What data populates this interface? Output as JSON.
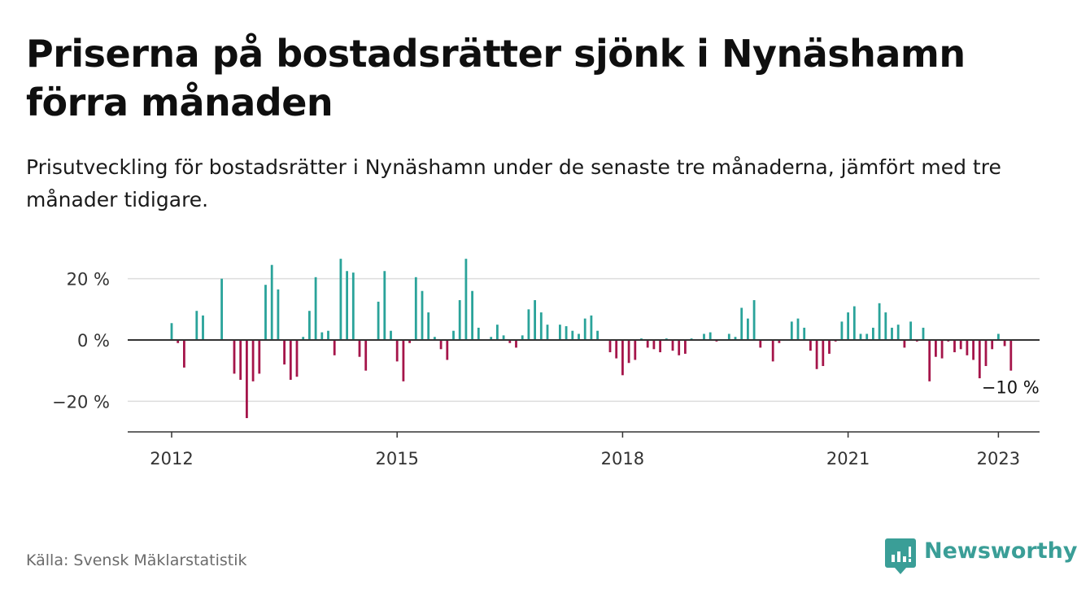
{
  "title": "Priserna på bostadsrätter sjönk i Nynäshamn förra månaden",
  "subtitle": "Prisutveckling för bostadsrätter i Nynäshamn under de senaste tre månaderna, jämfört med tre månader tidigare.",
  "source": "Källa: Svensk Mäklarstatistik",
  "brand": "Newsworthy",
  "colors": {
    "positive": "#2aa39a",
    "negative": "#a5154a",
    "zero_line": "#333333",
    "grid": "#dddddd",
    "brand": "#3a9e97"
  },
  "chart_data": {
    "type": "bar",
    "title": "",
    "xlabel": "",
    "ylabel": "",
    "ylim": [
      -30,
      30
    ],
    "yticks": [
      20,
      0,
      -20
    ],
    "ytick_labels": [
      "20 %",
      "0 %",
      "−20 %"
    ],
    "xticks": [
      2012,
      2015,
      2018,
      2021,
      2023
    ],
    "xtick_labels": [
      "2012",
      "2015",
      "2018",
      "2021",
      "2023"
    ],
    "grid": true,
    "legend": "none",
    "end_label": "−10 %",
    "series": [
      {
        "values": [
          5.5,
          -1,
          -9,
          null,
          9.5,
          8,
          null,
          null,
          20,
          null,
          -11,
          -13,
          -25.5,
          -13.5,
          -11,
          18,
          24.5,
          16.5,
          -8,
          -13,
          -12,
          1,
          9.5,
          20.5,
          2.5,
          3,
          -5,
          26.5,
          22.5,
          22,
          -5.5,
          -10,
          null,
          12.5,
          22.5,
          3,
          -7,
          -13.5,
          -1,
          20.5,
          16,
          9,
          1,
          -3,
          -6.5,
          3,
          13,
          26.5,
          16,
          4,
          null,
          1,
          5,
          1.5,
          -1,
          -2.5,
          1.5,
          10,
          13,
          9,
          5,
          null,
          5,
          4.5,
          3,
          2,
          7,
          8,
          3,
          null,
          -4,
          -6,
          -11.5,
          -7.5,
          -6.5,
          0.5,
          -2.5,
          -3,
          -4,
          0.5,
          -3.5,
          -5,
          -4.5,
          0.5,
          null,
          2,
          2.5,
          -0.5,
          null,
          2,
          1,
          10.5,
          7,
          13,
          -2.5,
          null,
          -7,
          -1,
          null,
          6,
          7,
          4,
          -3.5,
          -9.5,
          -8.5,
          -4.5,
          -0.5,
          6,
          9,
          11,
          2,
          2,
          4,
          12,
          9,
          4,
          5,
          -2.5,
          6,
          -0.5,
          4,
          -13.5,
          -5.5,
          -6,
          -0.5,
          -4,
          -3,
          -5,
          -6.5,
          -12.5,
          -8.5,
          -3,
          2,
          -2,
          -10
        ]
      }
    ]
  }
}
